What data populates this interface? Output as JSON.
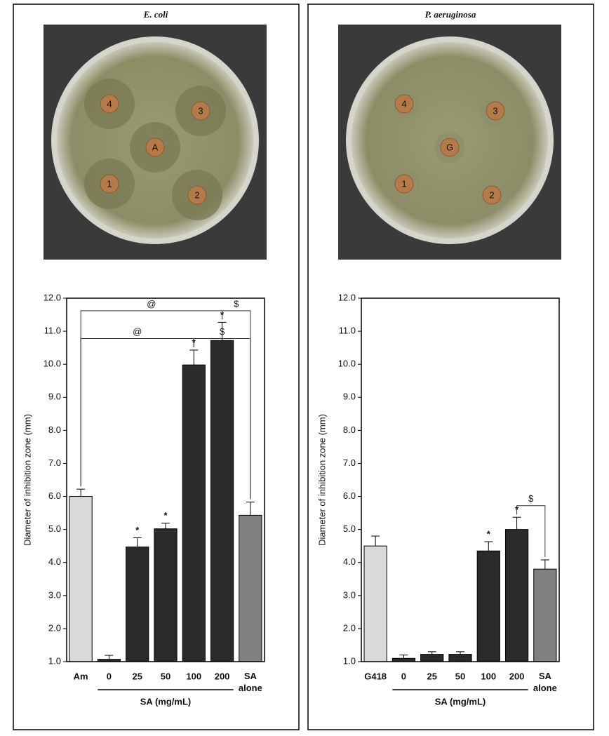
{
  "chart_data": [
    {
      "type": "bar",
      "title": "E. coli",
      "categories": [
        "Am",
        "0",
        "25",
        "50",
        "100",
        "200",
        "SA alone"
      ],
      "values": [
        6.0,
        1.07,
        4.47,
        5.02,
        9.98,
        10.72,
        5.43
      ],
      "errors": [
        0.22,
        0.12,
        0.28,
        0.17,
        0.45,
        0.55,
        0.4
      ],
      "colors": [
        "#d9d9d9",
        "#2b2b2b",
        "#2b2b2b",
        "#2b2b2b",
        "#2b2b2b",
        "#2b2b2b",
        "#808080"
      ],
      "markers": [
        null,
        null,
        "*",
        "*",
        "*",
        "*",
        null
      ],
      "brackets": [
        {
          "from": 0,
          "to": 5,
          "label": "@"
        },
        {
          "from": 5,
          "to": 6,
          "label": "$"
        },
        {
          "from": 0,
          "to": 4,
          "label": "@"
        },
        {
          "from": 4,
          "to": 6,
          "label": "$"
        }
      ],
      "group_label": "SA (mg/mL)",
      "group": [
        1,
        5
      ],
      "y_label": "Diameter of inhibition zone (mm)",
      "ylim": [
        1,
        12
      ],
      "yticks": [
        {
          "value": 1,
          "label": "1.0"
        },
        {
          "value": 2,
          "label": "2.0"
        },
        {
          "value": 3,
          "label": "3.0"
        },
        {
          "value": 4,
          "label": "4.0"
        },
        {
          "value": 5,
          "label": "5.0"
        },
        {
          "value": 6,
          "label": "6.0"
        },
        {
          "value": 7,
          "label": "7.0"
        },
        {
          "value": 8,
          "label": "8.0"
        },
        {
          "value": 9,
          "label": "9.0"
        },
        {
          "value": 10,
          "label": "10.0"
        },
        {
          "value": 11,
          "label": "11.0"
        },
        {
          "value": 12,
          "label": "12.0"
        }
      ],
      "plate": [
        "4",
        "3",
        "A",
        "1",
        "2"
      ]
    },
    {
      "type": "bar",
      "title": "P. aeruginosa",
      "categories": [
        "G418",
        "0",
        "25",
        "50",
        "100",
        "200",
        "SA alone"
      ],
      "values": [
        4.5,
        1.1,
        1.22,
        1.22,
        4.35,
        5.0,
        3.8
      ],
      "errors": [
        0.3,
        0.1,
        0.08,
        0.08,
        0.28,
        0.37,
        0.28
      ],
      "colors": [
        "#d9d9d9",
        "#2b2b2b",
        "#2b2b2b",
        "#2b2b2b",
        "#2b2b2b",
        "#2b2b2b",
        "#808080"
      ],
      "markers": [
        null,
        null,
        null,
        null,
        "*",
        "*",
        null
      ],
      "brackets": [
        {
          "from": 5,
          "to": 6,
          "label": "$"
        }
      ],
      "group_label": "SA (mg/mL)",
      "group": [
        1,
        5
      ],
      "y_label": "Diameter of inhibition zone (mm)",
      "ylim": [
        1,
        12
      ],
      "yticks": [
        {
          "value": 1,
          "label": "1.0"
        },
        {
          "value": 2,
          "label": "2.0"
        },
        {
          "value": 3,
          "label": "3.0"
        },
        {
          "value": 4,
          "label": "4.0"
        },
        {
          "value": 5,
          "label": "5.0"
        },
        {
          "value": 6,
          "label": "6.0"
        },
        {
          "value": 7,
          "label": "7.0"
        },
        {
          "value": 8,
          "label": "8.0"
        },
        {
          "value": 9,
          "label": "9.0"
        },
        {
          "value": 10,
          "label": "10.0"
        },
        {
          "value": 11,
          "label": "11.0"
        },
        {
          "value": 12,
          "label": "12.0"
        }
      ],
      "plate": [
        "4",
        "3",
        "G",
        "1",
        "2"
      ]
    }
  ]
}
